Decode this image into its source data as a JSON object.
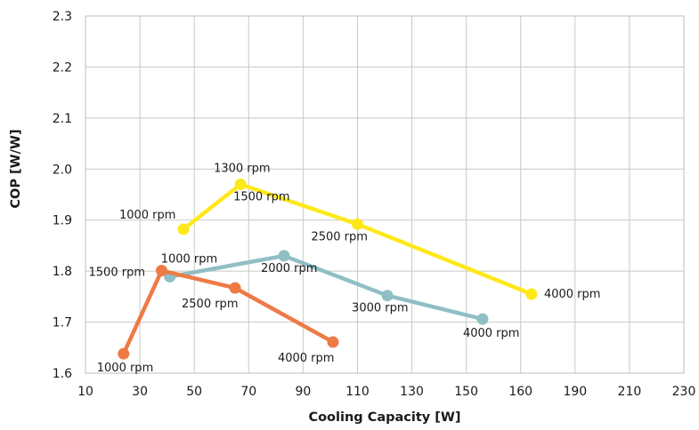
{
  "chart_data": {
    "type": "line",
    "xlabel": "Cooling Capacity [W]",
    "ylabel": "COP [W/W]",
    "x_ticks": [
      "10",
      "30",
      "50",
      "70",
      "90",
      "110",
      "130",
      "150",
      "160",
      "190",
      "210",
      "230"
    ],
    "y_ticks": [
      "1.6",
      "1.7",
      "1.8",
      "1.9",
      "2.0",
      "2.1",
      "2.2",
      "2.3"
    ],
    "ylim": [
      1.6,
      2.3
    ],
    "grid": true,
    "series": [
      {
        "color": "#ffe81a",
        "points": [
          {
            "x": 46,
            "y": 1.882,
            "label": "1000 rpm"
          },
          {
            "x": 67,
            "y": 1.97,
            "label": "1300 rpm"
          },
          {
            "x": 110,
            "y": 1.892,
            "label": "2500 rpm"
          },
          {
            "x": 166,
            "y": 1.755,
            "label": "4000 rpm"
          }
        ],
        "extra_labels": [
          {
            "near_point": 1,
            "label": "1500 rpm"
          }
        ]
      },
      {
        "color": "#8fbfc4",
        "points": [
          {
            "x": 41,
            "y": 1.789,
            "label": "1000 rpm"
          },
          {
            "x": 83,
            "y": 1.83,
            "label": "2000 rpm"
          },
          {
            "x": 121,
            "y": 1.752,
            "label": "3000 rpm"
          },
          {
            "x": 153,
            "y": 1.706,
            "label": "4000 rpm"
          }
        ]
      },
      {
        "color": "#ee7a45",
        "points": [
          {
            "x": 24,
            "y": 1.638,
            "label": "1000 rpm"
          },
          {
            "x": 38,
            "y": 1.801,
            "label": "1500 rpm"
          },
          {
            "x": 65,
            "y": 1.767,
            "label": "2500 rpm"
          },
          {
            "x": 101,
            "y": 1.661,
            "label": "4000 rpm"
          }
        ]
      }
    ]
  }
}
